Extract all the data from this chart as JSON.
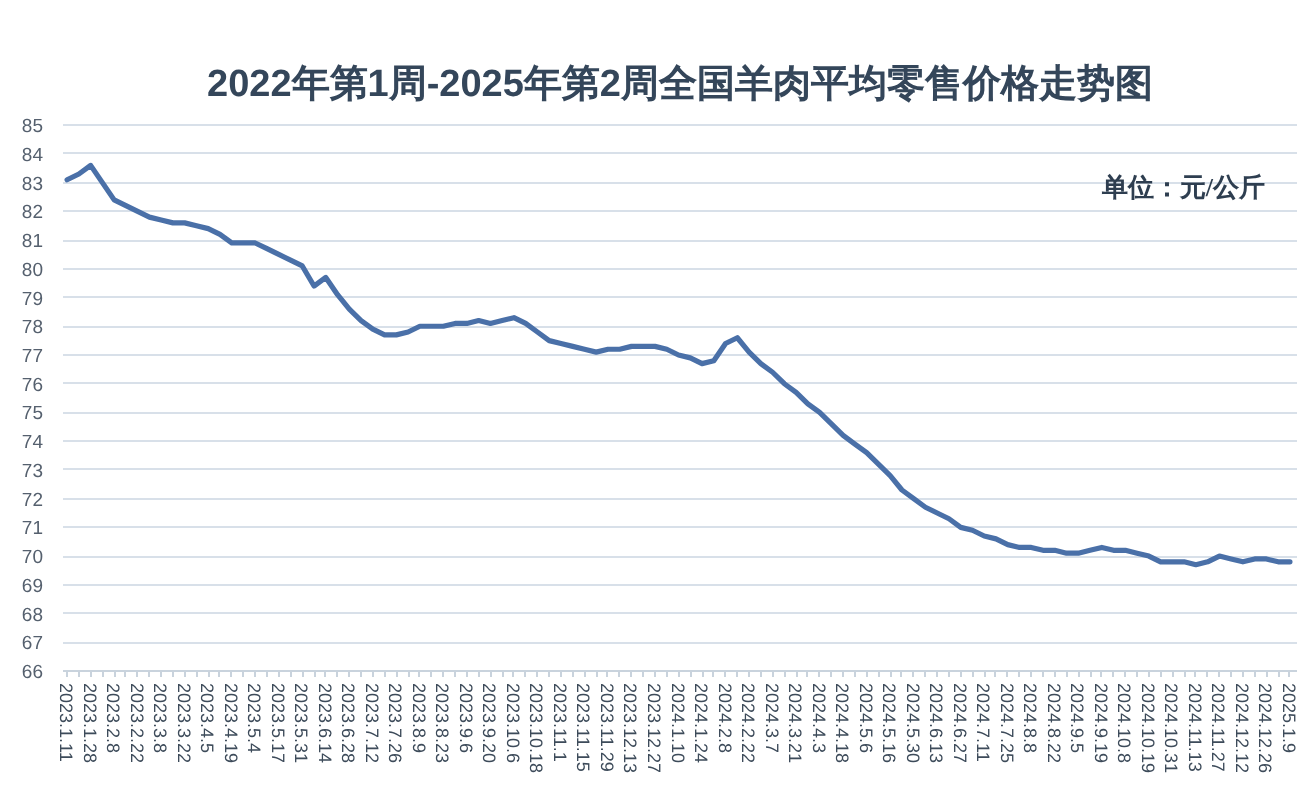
{
  "chart_data": {
    "type": "line",
    "title": "2022年第1周-2025年第2周全国羊肉平均零售价格走势图",
    "annotations": [
      "单位：元/公斤"
    ],
    "categories": [
      "2023.1.11",
      null,
      "2023.1.28",
      null,
      "2023.2.8",
      null,
      "2023.2.22",
      null,
      "2023.3.8",
      null,
      "2023.3.22",
      null,
      "2023.4.5",
      null,
      "2023.4.19",
      null,
      "2023.5.4",
      null,
      "2023.5.17",
      null,
      "2023.5.31",
      null,
      "2023.6.14",
      null,
      "2023.6.28",
      null,
      "2023.7.12",
      null,
      "2023.7.26",
      null,
      "2023.8.9",
      null,
      "2023.8.23",
      null,
      "2023.9.6",
      null,
      "2023.9.20",
      null,
      "2023.10.6",
      null,
      "2023.10.18",
      null,
      "2023.11.1",
      null,
      "2023.11.15",
      null,
      "2023.11.29",
      null,
      "2023.12.13",
      null,
      "2023.12.27",
      null,
      "2024.1.10",
      null,
      "2024.1.24",
      null,
      "2024.2.8",
      null,
      "2024.2.22",
      null,
      "2024.3.7",
      null,
      "2024.3.21",
      null,
      "2024.4.3",
      null,
      "2024.4.18",
      null,
      "2024.5.6",
      null,
      "2024.5.16",
      null,
      "2024.5.30",
      null,
      "2024.6.13",
      null,
      "2024.6.27",
      null,
      "2024.7.11",
      null,
      "2024.7.25",
      null,
      "2024.8.8",
      null,
      "2024.8.22",
      null,
      "2024.9.5",
      null,
      "2024.9.19",
      null,
      "2024.10.8",
      null,
      "2024.10.19",
      null,
      "2024.10.31",
      null,
      "2024.11.13",
      null,
      "2024.11.27",
      null,
      "2024.12.12",
      null,
      "2024.12.26",
      null,
      "2025.1.9"
    ],
    "values": [
      83.1,
      83.3,
      83.6,
      83.0,
      82.4,
      82.2,
      82.0,
      81.8,
      81.7,
      81.6,
      81.6,
      81.5,
      81.4,
      81.2,
      80.9,
      80.9,
      80.9,
      80.7,
      80.5,
      80.3,
      80.1,
      79.4,
      79.7,
      79.1,
      78.6,
      78.2,
      77.9,
      77.7,
      77.7,
      77.8,
      78.0,
      78.0,
      78.0,
      78.1,
      78.1,
      78.2,
      78.1,
      78.2,
      78.3,
      78.1,
      77.8,
      77.5,
      77.4,
      77.3,
      77.2,
      77.1,
      77.2,
      77.2,
      77.3,
      77.3,
      77.3,
      77.2,
      77.0,
      76.9,
      76.7,
      76.8,
      77.4,
      77.6,
      77.1,
      76.7,
      76.4,
      76.0,
      75.7,
      75.3,
      75.0,
      74.6,
      74.2,
      73.9,
      73.6,
      73.2,
      72.8,
      72.3,
      72.0,
      71.7,
      71.5,
      71.3,
      71.0,
      70.9,
      70.7,
      70.6,
      70.4,
      70.3,
      70.3,
      70.2,
      70.2,
      70.1,
      70.1,
      70.2,
      70.3,
      70.2,
      70.2,
      70.1,
      70.0,
      69.8,
      69.8,
      69.8,
      69.7,
      69.8,
      70.0,
      69.9,
      69.8,
      69.9,
      69.9,
      69.8,
      69.8
    ],
    "color": "#4a70a8",
    "ylim": [
      66,
      85
    ],
    "yticks": [
      66,
      67,
      68,
      69,
      70,
      71,
      72,
      73,
      74,
      75,
      76,
      77,
      78,
      79,
      80,
      81,
      82,
      83,
      84,
      85
    ],
    "grid": "y"
  }
}
